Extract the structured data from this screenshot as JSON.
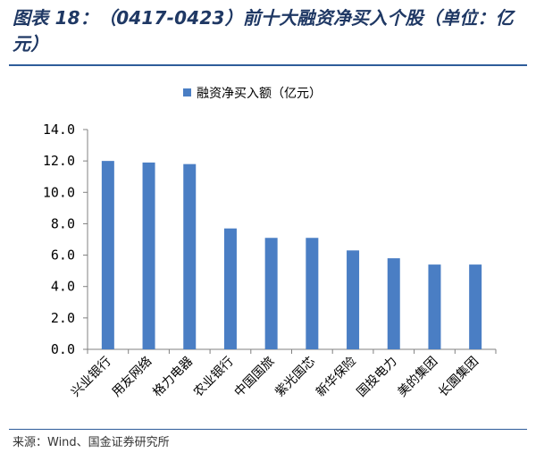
{
  "title": "图表 18：（0417-0423）前十大融资净买入个股（单位：亿元）",
  "source": "来源：Wind、国金证券研究所",
  "chart_data": {
    "type": "bar",
    "title": "",
    "xlabel": "",
    "ylabel": "",
    "legend_position": "top",
    "bar_color": "#4a7ec4",
    "ylim": [
      0,
      14
    ],
    "yticks": [
      "0.0",
      "2.0",
      "4.0",
      "6.0",
      "8.0",
      "10.0",
      "12.0",
      "14.0"
    ],
    "categories": [
      "兴业银行",
      "用友网络",
      "格力电器",
      "农业银行",
      "中国国旅",
      "紫光国芯",
      "新华保险",
      "国投电力",
      "美的集团",
      "长園集团"
    ],
    "series": [
      {
        "name": "融资净买入额（亿元）",
        "values": [
          12.0,
          11.9,
          11.8,
          7.7,
          7.1,
          7.1,
          6.3,
          5.8,
          5.4,
          5.4
        ]
      }
    ]
  }
}
